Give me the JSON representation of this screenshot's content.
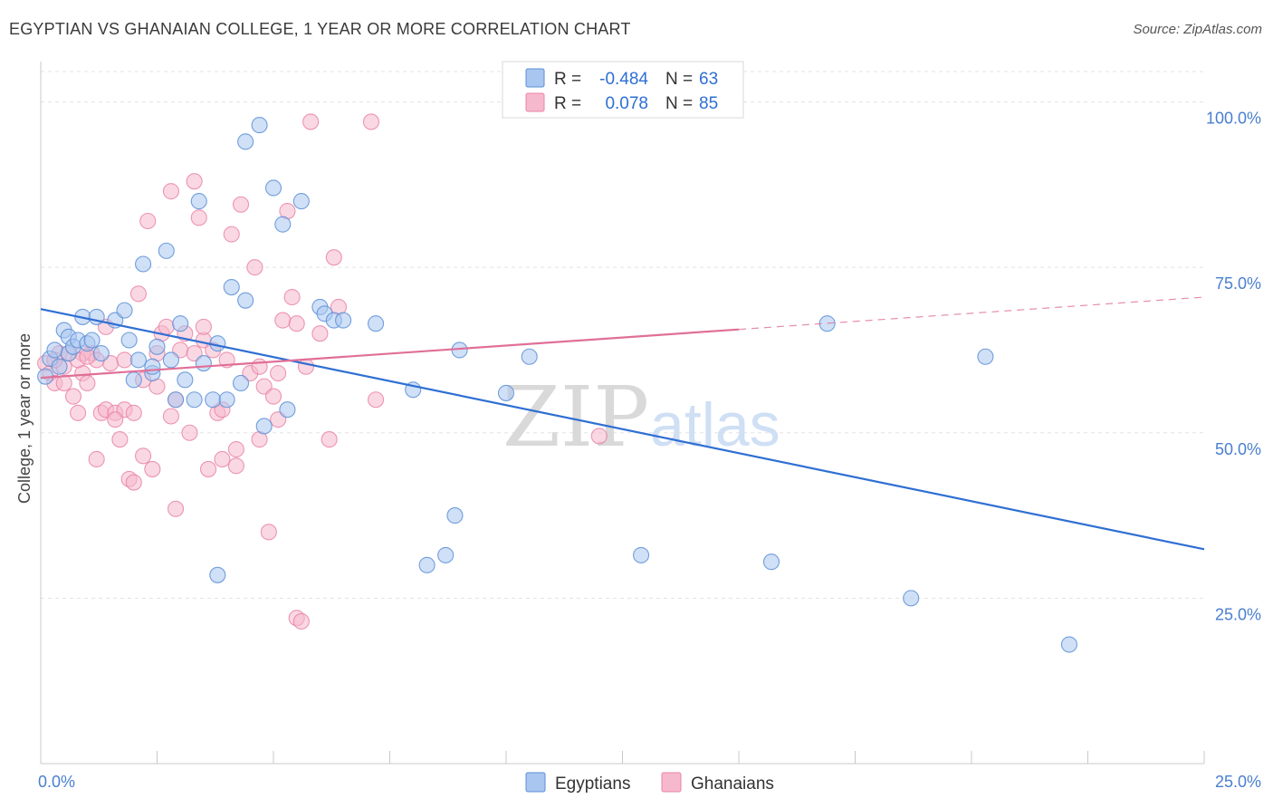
{
  "title": "EGYPTIAN VS GHANAIAN COLLEGE, 1 YEAR OR MORE CORRELATION CHART",
  "source": "Source: ZipAtlas.com",
  "colors": {
    "egyptian_fill": "#a9c6f0",
    "egyptian_stroke": "#5b8fd6",
    "egyptian_line": "#2e6fd3",
    "ghanaian_fill": "#f6b8cc",
    "ghanaian_stroke": "#e985a6",
    "ghanaian_line": "#e06f98",
    "tick_text": "#4a7fcf"
  },
  "legend": {
    "rows": [
      {
        "r_label": "R =",
        "r_value": "-0.484",
        "n_label": "N =",
        "n_value": "63"
      },
      {
        "r_label": "R =",
        "r_value": "0.078",
        "n_label": "N =",
        "n_value": "85"
      }
    ]
  },
  "watermark": {
    "zip": "ZIP",
    "atlas": "atlas"
  },
  "chart_data": {
    "type": "scatter",
    "title": "EGYPTIAN VS GHANAIAN COLLEGE, 1 YEAR OR MORE CORRELATION CHART",
    "ylabel": "College, 1 year or more",
    "xlabel": "",
    "xlim": [
      0,
      25
    ],
    "ylim": [
      0,
      105
    ],
    "x_tick_labels": [
      "0.0%",
      "25.0%"
    ],
    "y_ticks": [
      25,
      50,
      75,
      100
    ],
    "y_tick_labels": [
      "25.0%",
      "50.0%",
      "75.0%",
      "100.0%"
    ],
    "grid": true,
    "series": [
      {
        "name": "Egyptians",
        "R": -0.484,
        "N": 63,
        "trend": {
          "x0": 0,
          "y0": 68.7,
          "x1": 25,
          "y1": 32.4,
          "dashed_from": null
        },
        "points": [
          [
            0.1,
            58.5
          ],
          [
            0.2,
            61.2
          ],
          [
            0.3,
            62.5
          ],
          [
            0.4,
            60.0
          ],
          [
            0.5,
            65.5
          ],
          [
            0.6,
            64.5
          ],
          [
            0.6,
            62.0
          ],
          [
            0.7,
            63.0
          ],
          [
            0.8,
            64.0
          ],
          [
            0.9,
            67.5
          ],
          [
            1.0,
            63.5
          ],
          [
            1.1,
            64.0
          ],
          [
            1.2,
            67.5
          ],
          [
            1.3,
            62.0
          ],
          [
            1.6,
            67.0
          ],
          [
            1.8,
            68.5
          ],
          [
            1.9,
            64.0
          ],
          [
            2.0,
            58.0
          ],
          [
            2.1,
            61.0
          ],
          [
            2.2,
            75.5
          ],
          [
            2.4,
            59.0
          ],
          [
            2.5,
            63.0
          ],
          [
            2.7,
            77.5
          ],
          [
            2.8,
            61.0
          ],
          [
            2.9,
            55.0
          ],
          [
            3.0,
            66.5
          ],
          [
            3.1,
            58.0
          ],
          [
            3.3,
            55.0
          ],
          [
            3.4,
            85.0
          ],
          [
            3.5,
            60.5
          ],
          [
            3.7,
            55.0
          ],
          [
            3.8,
            63.5
          ],
          [
            3.8,
            28.5
          ],
          [
            4.0,
            55.0
          ],
          [
            4.1,
            72.0
          ],
          [
            4.3,
            57.5
          ],
          [
            4.4,
            94.0
          ],
          [
            4.4,
            70.0
          ],
          [
            4.7,
            96.5
          ],
          [
            4.8,
            51.0
          ],
          [
            5.0,
            87.0
          ],
          [
            5.2,
            81.5
          ],
          [
            5.3,
            53.5
          ],
          [
            5.6,
            85.0
          ],
          [
            6.0,
            69.0
          ],
          [
            6.1,
            68.0
          ],
          [
            6.3,
            67.0
          ],
          [
            6.5,
            67.0
          ],
          [
            7.2,
            66.5
          ],
          [
            8.0,
            56.5
          ],
          [
            8.3,
            30.0
          ],
          [
            8.7,
            31.5
          ],
          [
            8.9,
            37.5
          ],
          [
            9.0,
            62.5
          ],
          [
            10.0,
            56.0
          ],
          [
            10.5,
            61.5
          ],
          [
            12.9,
            31.5
          ],
          [
            15.7,
            30.5
          ],
          [
            16.9,
            66.5
          ],
          [
            18.7,
            25.0
          ],
          [
            20.3,
            61.5
          ],
          [
            22.1,
            18.0
          ],
          [
            2.4,
            60.0
          ]
        ]
      },
      {
        "name": "Ghanaians",
        "R": 0.078,
        "N": 85,
        "trend": {
          "x0": 0,
          "y0": 58.3,
          "x1": 25,
          "y1": 70.5,
          "dashed_from": 15
        },
        "points": [
          [
            0.1,
            60.5
          ],
          [
            0.2,
            59.0
          ],
          [
            0.3,
            57.5
          ],
          [
            0.4,
            62.0
          ],
          [
            0.5,
            60.0
          ],
          [
            0.6,
            62.0
          ],
          [
            0.7,
            55.5
          ],
          [
            0.8,
            53.0
          ],
          [
            0.9,
            59.0
          ],
          [
            1.0,
            57.5
          ],
          [
            1.1,
            62.0
          ],
          [
            1.2,
            46.0
          ],
          [
            1.3,
            53.0
          ],
          [
            1.4,
            53.5
          ],
          [
            1.5,
            60.5
          ],
          [
            1.6,
            53.0
          ],
          [
            1.7,
            49.0
          ],
          [
            1.8,
            53.5
          ],
          [
            1.9,
            43.0
          ],
          [
            2.0,
            53.0
          ],
          [
            2.1,
            71.0
          ],
          [
            2.2,
            46.5
          ],
          [
            2.3,
            82.0
          ],
          [
            2.4,
            44.5
          ],
          [
            2.5,
            62.0
          ],
          [
            2.6,
            65.0
          ],
          [
            2.7,
            66.0
          ],
          [
            2.8,
            86.5
          ],
          [
            2.8,
            52.5
          ],
          [
            2.9,
            38.5
          ],
          [
            3.0,
            62.5
          ],
          [
            3.1,
            65.0
          ],
          [
            3.2,
            50.0
          ],
          [
            3.3,
            88.0
          ],
          [
            3.4,
            82.5
          ],
          [
            3.5,
            64.0
          ],
          [
            3.6,
            44.5
          ],
          [
            3.7,
            62.5
          ],
          [
            3.8,
            53.0
          ],
          [
            3.9,
            46.0
          ],
          [
            4.0,
            61.0
          ],
          [
            4.1,
            80.0
          ],
          [
            4.2,
            47.5
          ],
          [
            4.3,
            84.5
          ],
          [
            4.5,
            59.0
          ],
          [
            4.6,
            75.0
          ],
          [
            4.7,
            49.0
          ],
          [
            4.8,
            57.0
          ],
          [
            4.9,
            35.0
          ],
          [
            5.0,
            55.5
          ],
          [
            5.1,
            52.0
          ],
          [
            5.2,
            67.0
          ],
          [
            5.3,
            83.5
          ],
          [
            5.4,
            70.5
          ],
          [
            5.5,
            66.5
          ],
          [
            5.5,
            22.0
          ],
          [
            5.6,
            21.5
          ],
          [
            5.7,
            60.0
          ],
          [
            5.8,
            97.0
          ],
          [
            6.0,
            65.0
          ],
          [
            6.2,
            49.0
          ],
          [
            6.3,
            76.5
          ],
          [
            6.4,
            69.0
          ],
          [
            7.1,
            97.0
          ],
          [
            7.2,
            55.0
          ],
          [
            12.0,
            49.5
          ],
          [
            0.3,
            61.0
          ],
          [
            0.9,
            62.0
          ],
          [
            1.4,
            66.0
          ],
          [
            1.6,
            52.0
          ],
          [
            2.0,
            42.5
          ],
          [
            2.5,
            57.0
          ],
          [
            2.9,
            55.0
          ],
          [
            3.3,
            62.0
          ],
          [
            3.5,
            66.0
          ],
          [
            3.9,
            53.5
          ],
          [
            4.2,
            45.0
          ],
          [
            4.7,
            60.0
          ],
          [
            5.1,
            59.0
          ],
          [
            1.2,
            61.0
          ],
          [
            1.8,
            61.0
          ],
          [
            2.2,
            58.0
          ],
          [
            0.5,
            57.5
          ],
          [
            0.8,
            61.0
          ],
          [
            1.0,
            61.5
          ]
        ]
      }
    ]
  },
  "bottom_legend": [
    {
      "label": "Egyptians"
    },
    {
      "label": "Ghanaians"
    }
  ]
}
